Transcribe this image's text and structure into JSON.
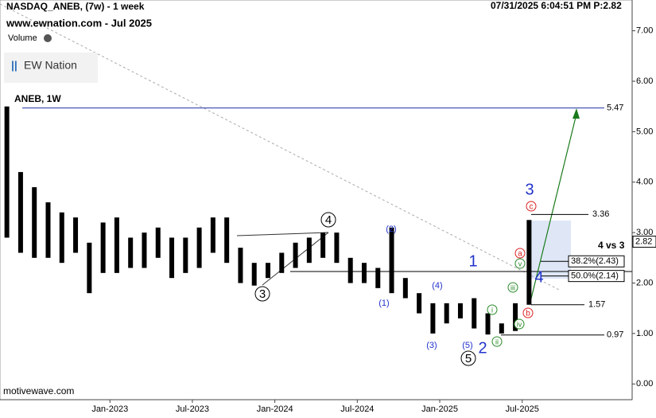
{
  "chart_data": {
    "type": "range-bar",
    "title": "NASDAQ_ANEB, (7w) - 1 week",
    "subtitle": "www.ewnation.com   - Jul 2025",
    "timestamp": "07/31/2025 6:04:51 PM  P:2.82",
    "indicator": "Volume",
    "brand": "EW Nation",
    "symbol_label": "ANEB, 1W",
    "footer": "motivewave.com",
    "note": "4 vs 3",
    "x": [
      "2022-05",
      "2022-06",
      "2022-07",
      "2022-08",
      "2022-09",
      "2022-10",
      "2022-11",
      "2022-12",
      "2023-01",
      "2023-02",
      "2023-03",
      "2023-04",
      "2023-05",
      "2023-06",
      "2023-07",
      "2023-08",
      "2023-09",
      "2023-10",
      "2023-11",
      "2023-12",
      "2024-01",
      "2024-02",
      "2024-03",
      "2024-04",
      "2024-05",
      "2024-06",
      "2024-07",
      "2024-08",
      "2024-09",
      "2024-10",
      "2024-11",
      "2024-12",
      "2025-01",
      "2025-02",
      "2025-03",
      "2025-04",
      "2025-05",
      "2025-06",
      "2025-07"
    ],
    "high": [
      5.5,
      4.2,
      3.9,
      3.6,
      3.4,
      3.3,
      2.8,
      3.2,
      3.3,
      2.9,
      3.0,
      3.1,
      2.9,
      2.9,
      3.1,
      3.3,
      3.3,
      2.7,
      2.4,
      2.4,
      2.6,
      2.8,
      2.9,
      3.0,
      3.0,
      2.5,
      2.4,
      2.3,
      3.1,
      2.1,
      1.8,
      1.6,
      1.6,
      1.6,
      1.7,
      1.4,
      1.2,
      1.6,
      3.25
    ],
    "low": [
      2.9,
      2.6,
      2.5,
      2.5,
      2.4,
      2.6,
      1.8,
      2.2,
      2.2,
      2.3,
      2.3,
      2.5,
      2.1,
      2.2,
      2.3,
      2.6,
      2.4,
      2.0,
      1.95,
      2.1,
      2.2,
      2.3,
      2.4,
      2.5,
      2.4,
      2.0,
      2.0,
      1.9,
      1.8,
      1.7,
      1.4,
      1.0,
      1.2,
      1.3,
      1.1,
      0.98,
      1.0,
      1.05,
      1.57
    ],
    "color": "#000000",
    "xlim": [
      "2022-05",
      "2026-03"
    ],
    "xticks": [
      {
        "value": "2023-01",
        "label": "Jan-2023"
      },
      {
        "value": "2023-07",
        "label": "Jul-2023"
      },
      {
        "value": "2024-01",
        "label": "Jan-2024"
      },
      {
        "value": "2024-07",
        "label": "Jul-2024"
      },
      {
        "value": "2025-01",
        "label": "Jan-2025"
      },
      {
        "value": "2025-07",
        "label": "Jul-2025"
      }
    ],
    "ylim": [
      -0.28,
      7.61
    ],
    "yticks": [
      {
        "value": 0,
        "label": "0.00"
      },
      {
        "value": 1,
        "label": "1.00"
      },
      {
        "value": 2,
        "label": "2.00"
      },
      {
        "value": 3,
        "label": "3.00"
      },
      {
        "value": 4,
        "label": "4.00"
      },
      {
        "value": 5,
        "label": "5.00"
      },
      {
        "value": 6,
        "label": "6.00"
      },
      {
        "value": 7,
        "label": "7.00"
      }
    ],
    "last_price": 2.82,
    "levels": [
      5.47,
      3.36,
      1.57,
      0.97,
      {
        "value": 2.43,
        "label": "38.2%(2.43)"
      },
      {
        "value": 2.14,
        "label": "50.0%(2.14)"
      }
    ],
    "wave_labels": [
      "4",
      "3",
      "5",
      "(2)",
      "(4)",
      "(1)",
      "(3)",
      "(5)",
      "2",
      "1",
      "3",
      "4",
      "c",
      "a",
      "b",
      "v",
      "iii",
      "i",
      "ii",
      "iv"
    ]
  }
}
